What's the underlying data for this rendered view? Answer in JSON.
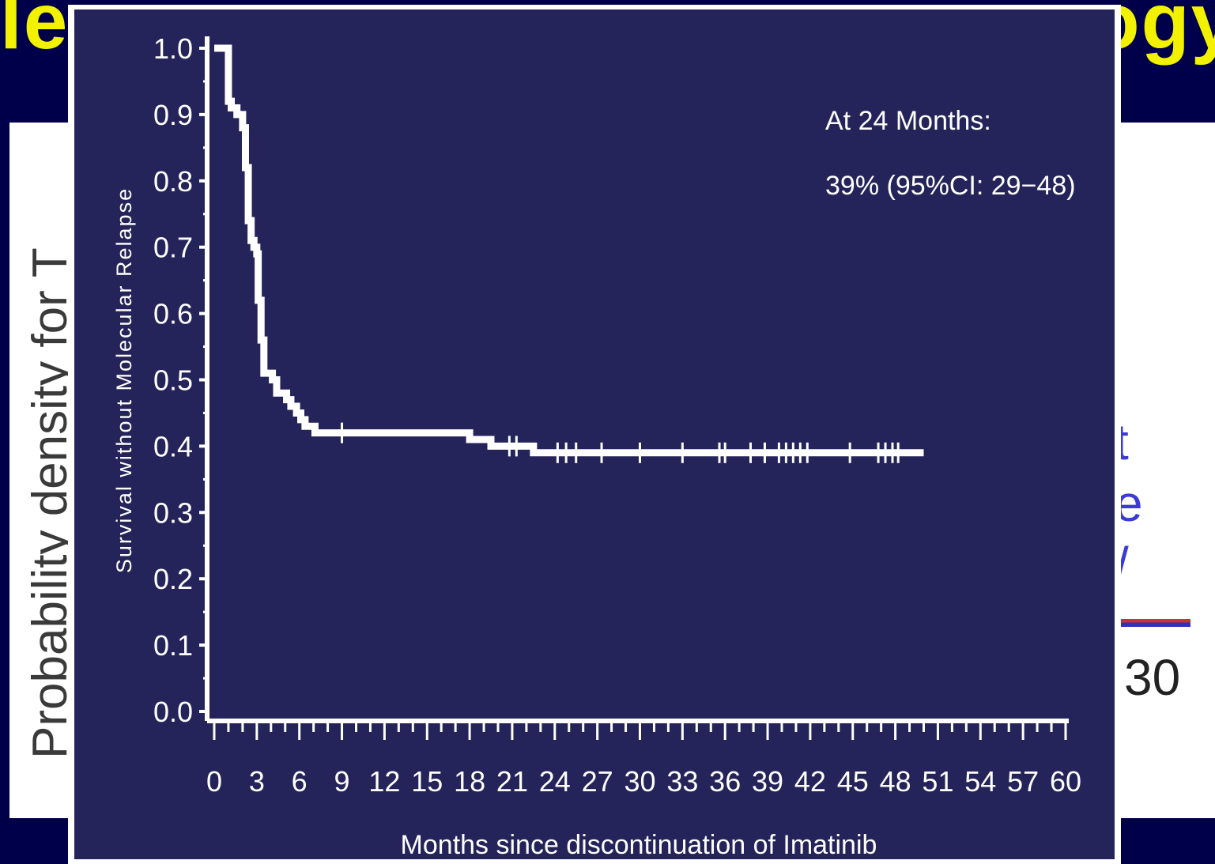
{
  "background": {
    "title": "leu",
    "title_right": "ogy",
    "ylabel": "Probability density for T",
    "glyphs": [
      "t",
      "e",
      "/"
    ],
    "tick": "30"
  },
  "chart_data": {
    "type": "line",
    "step": true,
    "title": "",
    "xlabel": "Months since discontinuation of Imatinib",
    "ylabel": "Survival without Molecular Relapse",
    "xlim": [
      0,
      60
    ],
    "ylim": [
      0,
      1.0
    ],
    "xticks": [
      "0",
      "3",
      "6",
      "9",
      "12",
      "15",
      "18",
      "21",
      "24",
      "27",
      "30",
      "33",
      "36",
      "39",
      "42",
      "45",
      "48",
      "51",
      "54",
      "57",
      "60"
    ],
    "yticks": [
      "0.0",
      "0.1",
      "0.2",
      "0.3",
      "0.4",
      "0.5",
      "0.6",
      "0.7",
      "0.8",
      "0.9",
      "1.0"
    ],
    "annotation": [
      "At 24 Months:",
      "39% (95%CI: 29−48)"
    ],
    "series": [
      {
        "x": [
          0,
          1,
          1.2,
          1.6,
          2.0,
          2.2,
          2.4,
          2.6,
          2.8,
          3.0,
          3.1,
          3.3,
          3.5,
          3.8,
          4.1,
          4.4,
          4.8,
          5.1,
          5.4,
          5.8,
          6.1,
          6.4,
          7.1,
          18.0,
          19.5,
          20.5,
          22.5,
          50
        ],
        "y": [
          1.0,
          0.92,
          0.91,
          0.9,
          0.88,
          0.82,
          0.74,
          0.71,
          0.7,
          0.69,
          0.62,
          0.56,
          0.51,
          0.51,
          0.5,
          0.48,
          0.48,
          0.47,
          0.46,
          0.45,
          0.44,
          0.43,
          0.42,
          0.41,
          0.4,
          0.4,
          0.39,
          0.39
        ],
        "censored": [
          {
            "x": 9.0,
            "y": 0.42
          },
          {
            "x": 20.8,
            "y": 0.4
          },
          {
            "x": 21.3,
            "y": 0.4
          },
          {
            "x": 24.2,
            "y": 0.39
          },
          {
            "x": 24.8,
            "y": 0.39
          },
          {
            "x": 25.5,
            "y": 0.39
          },
          {
            "x": 27.3,
            "y": 0.39
          },
          {
            "x": 30.0,
            "y": 0.39
          },
          {
            "x": 33.0,
            "y": 0.39
          },
          {
            "x": 35.6,
            "y": 0.39
          },
          {
            "x": 36.0,
            "y": 0.39
          },
          {
            "x": 37.8,
            "y": 0.39
          },
          {
            "x": 38.8,
            "y": 0.39
          },
          {
            "x": 39.8,
            "y": 0.39
          },
          {
            "x": 40.3,
            "y": 0.39
          },
          {
            "x": 40.8,
            "y": 0.39
          },
          {
            "x": 41.3,
            "y": 0.39
          },
          {
            "x": 41.8,
            "y": 0.39
          },
          {
            "x": 44.8,
            "y": 0.39
          },
          {
            "x": 46.8,
            "y": 0.39
          },
          {
            "x": 47.3,
            "y": 0.39
          },
          {
            "x": 47.8,
            "y": 0.39
          },
          {
            "x": 48.2,
            "y": 0.39
          }
        ]
      }
    ],
    "colors": {
      "plot_bg": "#24245a",
      "line": "#ffffff",
      "frame": "#ffffff"
    }
  }
}
